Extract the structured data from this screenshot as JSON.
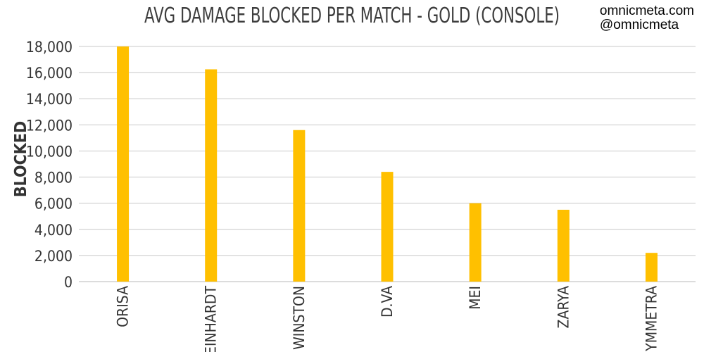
{
  "watermark": {
    "site": "omnicmeta.com",
    "handle": "@omnicmeta"
  },
  "chart_data": {
    "type": "bar",
    "title": "AVG DAMAGE BLOCKED PER MATCH - GOLD (CONSOLE)",
    "xlabel": "",
    "ylabel": "BLOCKED",
    "categories": [
      "ORISA",
      "REINHARDT",
      "WINSTON",
      "D.VA",
      "MEI",
      "ZARYA",
      "SYMMETRA"
    ],
    "series": [
      {
        "values": [
          18000,
          16250,
          11600,
          8400,
          6000,
          5500,
          2200
        ]
      }
    ],
    "ylim": [
      0,
      18000
    ],
    "yticks": [
      0,
      2000,
      4000,
      6000,
      8000,
      10000,
      12000,
      14000,
      16000,
      18000
    ],
    "ytick_labels": [
      "0",
      "2,000",
      "4,000",
      "6,000",
      "8,000",
      "10,000",
      "12,000",
      "14,000",
      "16,000",
      "18,000"
    ],
    "grid": true,
    "legend": "none",
    "bar_color": "#ffc000",
    "grid_color": "#c8c8c8"
  }
}
